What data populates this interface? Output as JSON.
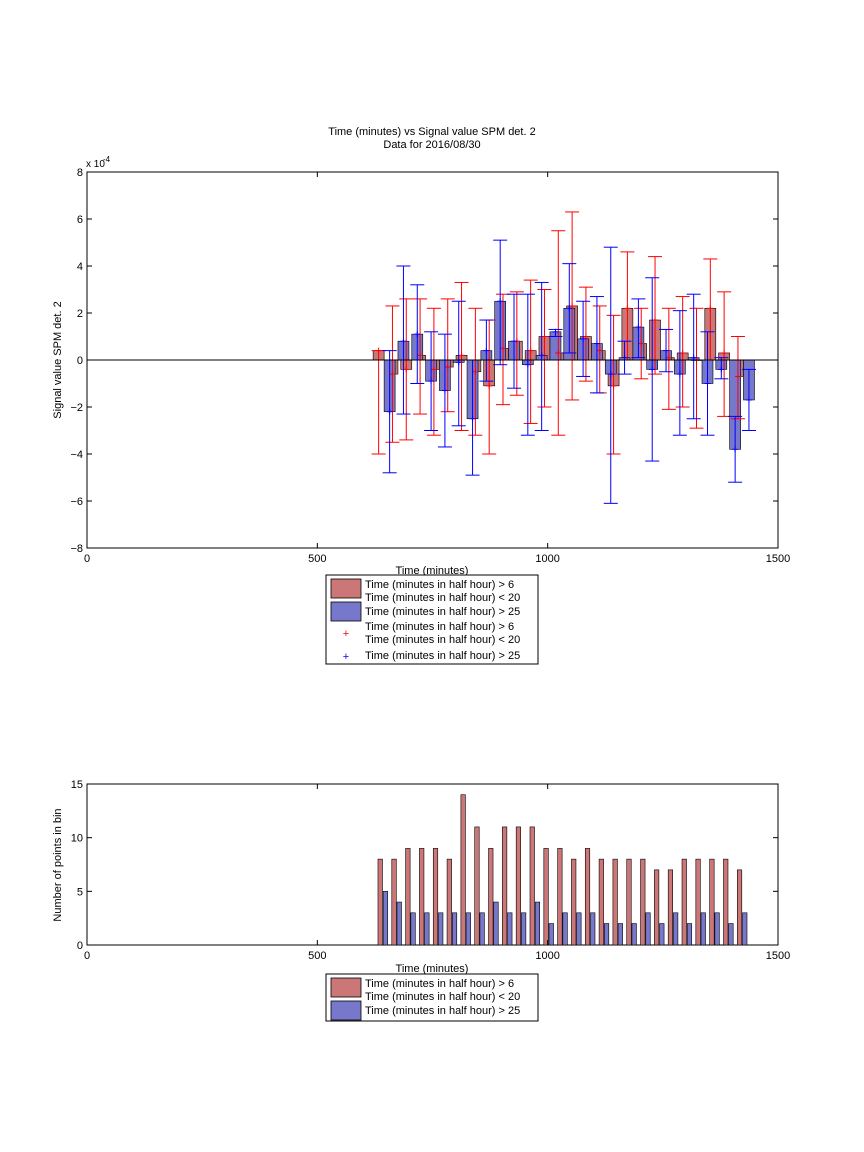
{
  "chart_data": [
    {
      "type": "bar",
      "title": "Time (minutes) vs Signal value SPM det. 2",
      "subtitle": "Data for 2016/08/30",
      "xlabel": "Time (minutes)",
      "ylabel": "Signal value SPM det. 2",
      "exponent_label": "x 10",
      "exponent_power": "-4",
      "xlim": [
        0,
        1500
      ],
      "ylim": [
        -8,
        8
      ],
      "xticks": [
        "0",
        "500",
        "1000",
        "1500"
      ],
      "yticks": [
        "−8",
        "−6",
        "−4",
        "−2",
        "0",
        "2",
        "4",
        "6",
        "8"
      ],
      "grid": false,
      "legend_position": "bottom-center",
      "legend": [
        {
          "name_line1": "Time (minutes in half hour) > 6",
          "name_line2": "Time (minutes in half hour) < 20",
          "kind": "bar",
          "color": "#cc7777"
        },
        {
          "name_line1": "Time (minutes in half hour) > 25",
          "kind": "bar",
          "color": "#7777cc"
        },
        {
          "name_line1": "Time (minutes in half hour) > 6",
          "name_line2": "Time (minutes in half hour) < 20",
          "kind": "marker",
          "color": "#ff0000"
        },
        {
          "name_line1": "Time (minutes in half hour) > 25",
          "kind": "marker",
          "color": "#0000ff"
        }
      ],
      "series": [
        {
          "color": "#cc7777",
          "errcolor": "#ff0000",
          "points": [
            {
              "x": 645,
              "y": 0.4,
              "lo": -4.0,
              "hi": 0.4
            },
            {
              "x": 675,
              "y": -0.6,
              "lo": -3.5,
              "hi": 2.3
            },
            {
              "x": 705,
              "y": -0.4,
              "lo": -3.4,
              "hi": 2.6
            },
            {
              "x": 735,
              "y": 0.2,
              "lo": -2.3,
              "hi": 2.6
            },
            {
              "x": 765,
              "y": -0.4,
              "lo": -3.2,
              "hi": 2.2
            },
            {
              "x": 795,
              "y": -0.3,
              "lo": -2.2,
              "hi": 2.6
            },
            {
              "x": 825,
              "y": 0.2,
              "lo": -3.0,
              "hi": 3.3
            },
            {
              "x": 855,
              "y": -0.5,
              "lo": -3.2,
              "hi": 2.2
            },
            {
              "x": 885,
              "y": -1.1,
              "lo": -4.0,
              "hi": 1.7
            },
            {
              "x": 915,
              "y": 0.5,
              "lo": -1.9,
              "hi": 2.8
            },
            {
              "x": 945,
              "y": 0.8,
              "lo": -1.5,
              "hi": 2.9
            },
            {
              "x": 975,
              "y": 0.4,
              "lo": -2.7,
              "hi": 3.4
            },
            {
              "x": 1005,
              "y": 1.0,
              "lo": -2.0,
              "hi": 3.0
            },
            {
              "x": 1035,
              "y": 0.3,
              "lo": -3.2,
              "hi": 5.5
            },
            {
              "x": 1065,
              "y": 2.3,
              "lo": -1.7,
              "hi": 6.3
            },
            {
              "x": 1095,
              "y": 1.0,
              "lo": -0.9,
              "hi": 3.1
            },
            {
              "x": 1125,
              "y": 0.4,
              "lo": -1.4,
              "hi": 2.3
            },
            {
              "x": 1155,
              "y": -1.1,
              "lo": -4.0,
              "hi": 1.9
            },
            {
              "x": 1185,
              "y": 2.2,
              "lo": 0.0,
              "hi": 4.6
            },
            {
              "x": 1215,
              "y": 0.7,
              "lo": -0.8,
              "hi": 2.2
            },
            {
              "x": 1245,
              "y": 1.7,
              "lo": -0.6,
              "hi": 4.4
            },
            {
              "x": 1275,
              "y": 0.1,
              "lo": -2.1,
              "hi": 2.2
            },
            {
              "x": 1305,
              "y": 0.3,
              "lo": -2.0,
              "hi": 2.7
            },
            {
              "x": 1335,
              "y": 0.0,
              "lo": -2.9,
              "hi": 2.2
            },
            {
              "x": 1365,
              "y": 2.2,
              "lo": 0.0,
              "hi": 4.3
            },
            {
              "x": 1395,
              "y": 0.3,
              "lo": -2.4,
              "hi": 2.9
            },
            {
              "x": 1425,
              "y": -0.7,
              "lo": -2.5,
              "hi": 1.0
            }
          ]
        },
        {
          "color": "#7777cc",
          "errcolor": "#0000ff",
          "points": [
            {
              "x": 645,
              "y": -2.2,
              "lo": -4.8,
              "hi": 0.4
            },
            {
              "x": 675,
              "y": 0.8,
              "lo": -2.3,
              "hi": 4.0
            },
            {
              "x": 705,
              "y": 1.1,
              "lo": -1.0,
              "hi": 3.2
            },
            {
              "x": 735,
              "y": -0.9,
              "lo": -3.0,
              "hi": 1.2
            },
            {
              "x": 765,
              "y": -1.3,
              "lo": -3.7,
              "hi": 1.1
            },
            {
              "x": 795,
              "y": -0.1,
              "lo": -2.8,
              "hi": 2.5
            },
            {
              "x": 825,
              "y": -2.5,
              "lo": -4.9,
              "hi": 0.0
            },
            {
              "x": 855,
              "y": 0.4,
              "lo": -0.9,
              "hi": 1.7
            },
            {
              "x": 885,
              "y": 2.5,
              "lo": -0.2,
              "hi": 5.1
            },
            {
              "x": 915,
              "y": 0.8,
              "lo": -1.2,
              "hi": 2.8
            },
            {
              "x": 945,
              "y": -0.2,
              "lo": -3.2,
              "hi": 2.8
            },
            {
              "x": 975,
              "y": 0.2,
              "lo": -3.0,
              "hi": 3.3
            },
            {
              "x": 1005,
              "y": 1.2,
              "lo": 1.0,
              "hi": 1.3
            },
            {
              "x": 1035,
              "y": 2.2,
              "lo": 0.3,
              "hi": 4.1
            },
            {
              "x": 1065,
              "y": 0.9,
              "lo": -0.7,
              "hi": 2.5
            },
            {
              "x": 1095,
              "y": 0.7,
              "lo": -1.4,
              "hi": 2.7
            },
            {
              "x": 1125,
              "y": -0.6,
              "lo": -6.1,
              "hi": 4.8
            },
            {
              "x": 1155,
              "y": 0.1,
              "lo": -0.6,
              "hi": 0.8
            },
            {
              "x": 1185,
              "y": 1.4,
              "lo": 0.1,
              "hi": 2.6
            },
            {
              "x": 1215,
              "y": -0.4,
              "lo": -4.3,
              "hi": 3.5
            },
            {
              "x": 1245,
              "y": 0.4,
              "lo": -0.5,
              "hi": 1.3
            },
            {
              "x": 1275,
              "y": -0.6,
              "lo": -3.2,
              "hi": 2.1
            },
            {
              "x": 1305,
              "y": 0.1,
              "lo": -2.5,
              "hi": 2.8
            },
            {
              "x": 1335,
              "y": -1.0,
              "lo": -3.2,
              "hi": 1.2
            },
            {
              "x": 1365,
              "y": -0.4,
              "lo": -0.8,
              "hi": 0.1
            },
            {
              "x": 1395,
              "y": -3.8,
              "lo": -5.2,
              "hi": -2.4
            },
            {
              "x": 1425,
              "y": -1.7,
              "lo": -3.0,
              "hi": -0.4
            }
          ]
        }
      ]
    },
    {
      "type": "bar",
      "xlabel": "Time (minutes)",
      "ylabel": "Number of points in bin",
      "xlim": [
        0,
        1500
      ],
      "ylim": [
        0,
        15
      ],
      "xticks": [
        "0",
        "500",
        "1000",
        "1500"
      ],
      "yticks": [
        "0",
        "5",
        "10",
        "15"
      ],
      "grid": false,
      "legend_position": "bottom-center",
      "legend": [
        {
          "name_line1": "Time (minutes in half hour) > 6",
          "name_line2": "Time (minutes in half hour) < 20",
          "kind": "bar",
          "color": "#cc7777"
        },
        {
          "name_line1": "Time (minutes in half hour) > 25",
          "kind": "bar",
          "color": "#7777cc"
        }
      ],
      "x": [
        640,
        670,
        700,
        730,
        760,
        790,
        820,
        850,
        880,
        910,
        940,
        970,
        1000,
        1030,
        1060,
        1090,
        1120,
        1150,
        1180,
        1210,
        1240,
        1270,
        1300,
        1330,
        1360,
        1390,
        1420
      ],
      "series": [
        {
          "color": "#cc7777",
          "values": [
            8,
            8,
            9,
            9,
            9,
            8,
            14,
            11,
            9,
            11,
            11,
            11,
            9,
            9,
            8,
            9,
            8,
            8,
            8,
            8,
            7,
            7,
            8,
            8,
            8,
            8,
            7
          ]
        },
        {
          "color": "#7777cc",
          "values": [
            5,
            4,
            3,
            3,
            3,
            3,
            3,
            3,
            4,
            3,
            3,
            4,
            2,
            3,
            3,
            3,
            2,
            2,
            2,
            3,
            2,
            3,
            2,
            3,
            3,
            2,
            3
          ]
        }
      ]
    }
  ]
}
